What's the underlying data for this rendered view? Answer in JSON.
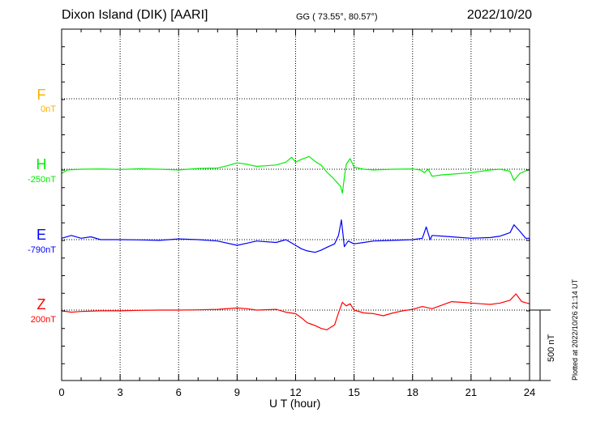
{
  "header": {
    "station": "Dixon Island (DIK)  [AARI]",
    "coords": "GG ( 73.55°,  80.57°)",
    "date": "2022/10/20"
  },
  "footnote": "Plotted at 2022/10/26 21:14 UT",
  "scale_bar": {
    "label": "500 nT",
    "value_nT": 500
  },
  "colors": {
    "F": "#ffb000",
    "H": "#00ee00",
    "E": "#0000ff",
    "Z": "#ff0000",
    "axis": "#000000"
  },
  "chart_data": {
    "type": "line",
    "xlabel": "U T (hour)",
    "xlim": [
      0,
      24
    ],
    "xticks": [
      "0",
      "3",
      "6",
      "9",
      "12",
      "15",
      "18",
      "21",
      "24"
    ],
    "units": "nT",
    "channels": [
      {
        "name": "F",
        "baseline_label": "0nT",
        "baseline": 0,
        "x": [],
        "y": []
      },
      {
        "name": "H",
        "baseline_label": "-250nT",
        "baseline": -250,
        "x": [
          0,
          0.3,
          1,
          2,
          3,
          4,
          5,
          6,
          7,
          8,
          8.5,
          9,
          9.5,
          10,
          10.5,
          11,
          11.5,
          11.8,
          12,
          12.3,
          12.5,
          12.7,
          13,
          13.3,
          13.6,
          13.9,
          14.1,
          14.3,
          14.4,
          14.5,
          14.6,
          14.8,
          15,
          15.5,
          16,
          17,
          18,
          18.4,
          18.6,
          18.8,
          19,
          19.5,
          20,
          21,
          22,
          22.5,
          23,
          23.2,
          23.5,
          24
        ],
        "y": [
          -280,
          -255,
          -250,
          -248,
          -252,
          -247,
          -250,
          -255,
          -245,
          -242,
          -225,
          -205,
          -215,
          -230,
          -225,
          -220,
          -200,
          -165,
          -200,
          -180,
          -170,
          -160,
          -195,
          -220,
          -270,
          -310,
          -340,
          -370,
          -420,
          -310,
          -215,
          -175,
          -235,
          -250,
          -255,
          -250,
          -248,
          -255,
          -275,
          -250,
          -300,
          -290,
          -285,
          -275,
          -255,
          -250,
          -265,
          -330,
          -280,
          -250
        ]
      },
      {
        "name": "E",
        "baseline_label": "-790nT",
        "baseline": -790,
        "x": [
          0,
          0.5,
          1,
          1.5,
          2,
          3,
          4,
          5,
          6,
          7,
          8,
          9,
          9.5,
          10,
          11,
          11.5,
          12,
          12.3,
          12.6,
          13,
          13.3,
          13.6,
          14,
          14.2,
          14.35,
          14.5,
          14.7,
          15,
          15.5,
          16,
          17,
          18,
          18.5,
          18.7,
          18.9,
          19,
          19.5,
          20,
          21,
          22,
          22.5,
          23,
          23.2,
          23.5,
          23.8,
          24
        ],
        "y": [
          -780,
          -760,
          -780,
          -770,
          -790,
          -790,
          -792,
          -795,
          -785,
          -790,
          -800,
          -830,
          -815,
          -800,
          -810,
          -790,
          -830,
          -855,
          -870,
          -880,
          -865,
          -845,
          -820,
          -760,
          -650,
          -840,
          -800,
          -820,
          -810,
          -800,
          -795,
          -790,
          -780,
          -700,
          -790,
          -760,
          -765,
          -770,
          -780,
          -775,
          -765,
          -740,
          -685,
          -730,
          -780,
          -780
        ]
      },
      {
        "name": "Z",
        "baseline_label": "200nT",
        "baseline": 200,
        "x": [
          0,
          0.5,
          1,
          2,
          3,
          4,
          5,
          6,
          7,
          8,
          9,
          9.5,
          10,
          11,
          11.5,
          12,
          12.3,
          12.6,
          13,
          13.3,
          13.6,
          14,
          14.2,
          14.4,
          14.6,
          14.8,
          15,
          15.5,
          16,
          16.5,
          17,
          17.5,
          18,
          18.5,
          19,
          19.5,
          20,
          20.5,
          21,
          21.5,
          22,
          22.5,
          23,
          23.3,
          23.6,
          24
        ],
        "y": [
          195,
          185,
          190,
          195,
          195,
          198,
          200,
          200,
          202,
          205,
          215,
          210,
          200,
          205,
          185,
          175,
          145,
          110,
          90,
          70,
          60,
          95,
          180,
          255,
          230,
          245,
          200,
          180,
          175,
          160,
          180,
          195,
          205,
          225,
          210,
          235,
          260,
          255,
          250,
          245,
          240,
          250,
          270,
          315,
          260,
          245
        ]
      }
    ]
  }
}
